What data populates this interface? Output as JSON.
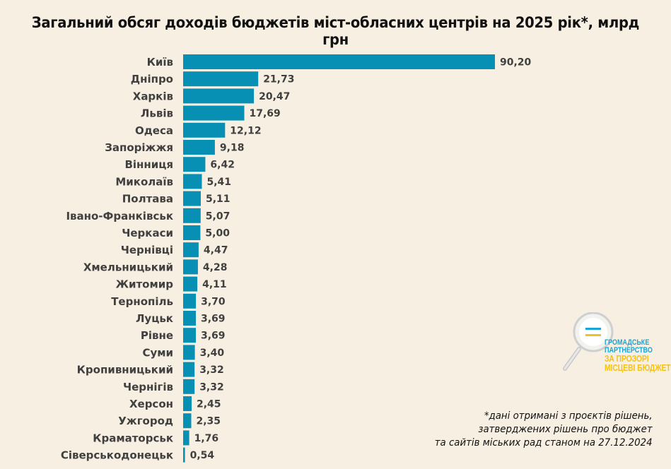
{
  "chart_data": {
    "type": "bar",
    "orientation": "horizontal",
    "title": "Загальний обсяг доходів бюджетів міст-обласних центрів на 2025 рік*, млрд грн",
    "xlabel": "",
    "ylabel": "",
    "unit": "млрд грн",
    "grid": false,
    "legend": null,
    "bar_color": "#0890b4",
    "categories": [
      "Київ",
      "Дніпро",
      "Харків",
      "Львів",
      "Одеса",
      "Запоріжжя",
      "Вінниця",
      "Миколаїв",
      "Полтава",
      "Івано-Франківськ",
      "Черкаси",
      "Чернівці",
      "Хмельницький",
      "Житомир",
      "Тернопіль",
      "Луцьк",
      "Рівне",
      "Суми",
      "Кропивницький",
      "Чернігів",
      "Херсон",
      "Ужгород",
      "Краматорськ",
      "Сіверськодонецьк"
    ],
    "values": [
      90.2,
      21.73,
      20.47,
      17.69,
      12.12,
      9.18,
      6.42,
      5.41,
      5.11,
      5.07,
      5.0,
      4.47,
      4.28,
      4.11,
      3.7,
      3.69,
      3.69,
      3.4,
      3.32,
      3.32,
      2.45,
      2.35,
      1.76,
      0.54
    ],
    "value_labels": [
      "90,20",
      "21,73",
      "20,47",
      "17,69",
      "12,12",
      "9,18",
      "6,42",
      "5,41",
      "5,11",
      "5,07",
      "5,00",
      "4,47",
      "4,28",
      "4,11",
      "3,70",
      "3,69",
      "3,69",
      "3,40",
      "3,32",
      "3,32",
      "2,45",
      "2,35",
      "1,76",
      "0,54"
    ],
    "xlim": [
      0,
      90.2
    ]
  },
  "footnote": {
    "lines": [
      "*дані отримані з проєктів рішень,",
      "затверджених рішень про бюджет",
      "та сайтів міських рад станом на 27.12.2024"
    ]
  },
  "logo": {
    "line1": "ГРОМАДСЬКЕ",
    "line2": "ПАРТНЕРСТВО",
    "line3": "ЗА ПРОЗОРІ",
    "line4": "МІСЦЕВІ БЮДЖЕТИ!",
    "colors": {
      "blue": "#1aa5d6",
      "yellow": "#f3c21a"
    }
  }
}
